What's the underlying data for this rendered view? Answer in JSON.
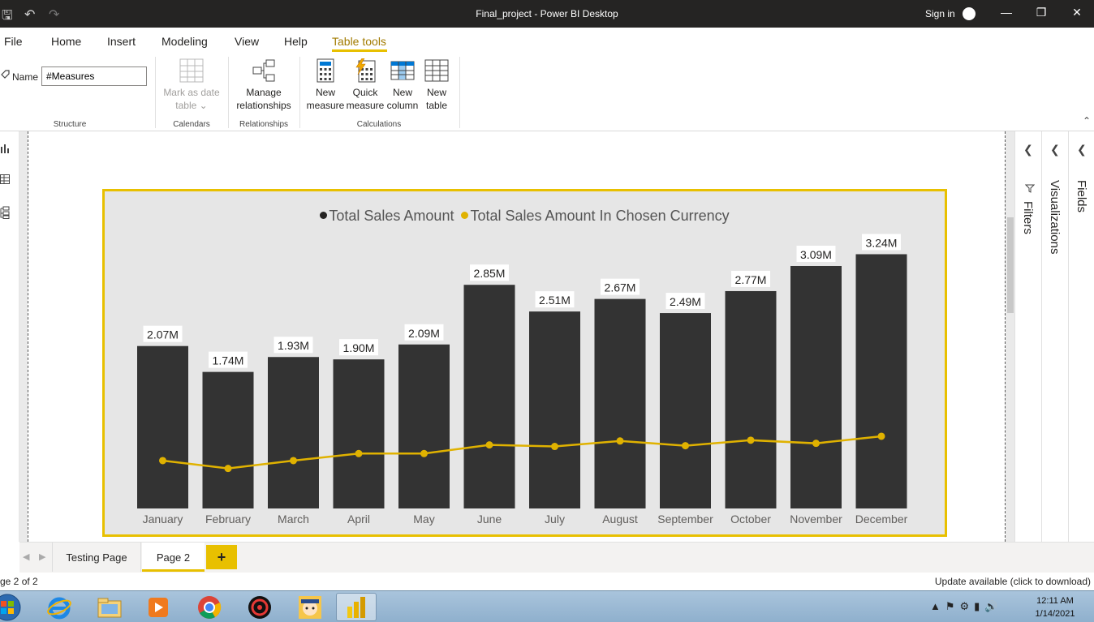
{
  "window": {
    "title": "Final_project - Power BI Desktop",
    "signin": "Sign in"
  },
  "menu": {
    "items": [
      "File",
      "Home",
      "Insert",
      "Modeling",
      "View",
      "Help",
      "Table tools"
    ],
    "active": "Table tools"
  },
  "ribbon": {
    "name_label": "Name",
    "name_value": "#Measures",
    "groups": {
      "structure": "Structure",
      "calendars": "Calendars",
      "relationships": "Relationships",
      "calculations": "Calculations"
    },
    "buttons": {
      "mark_date_1": "Mark as date",
      "mark_date_2": "table",
      "manage_rel_1": "Manage",
      "manage_rel_2": "relationships",
      "new_measure_1": "New",
      "new_measure_2": "measure",
      "quick_measure_1": "Quick",
      "quick_measure_2": "measure",
      "new_column_1": "New",
      "new_column_2": "column",
      "new_table_1": "New",
      "new_table_2": "table"
    }
  },
  "panes": {
    "filters": "Filters",
    "visualizations": "Visualizations",
    "fields": "Fields"
  },
  "tabs": {
    "testing": "Testing Page",
    "page2": "Page 2",
    "add": "+"
  },
  "status": {
    "page_info": "ge 2 of 2",
    "update": "Update available (click to download)"
  },
  "taskbar": {
    "time": "12:11 AM",
    "date": "1/14/2021"
  },
  "colors": {
    "bar": "#333333",
    "line": "#e0b200",
    "accent": "#e8c000"
  },
  "chart_data": {
    "type": "bar",
    "categories": [
      "January",
      "February",
      "March",
      "April",
      "May",
      "June",
      "July",
      "August",
      "September",
      "October",
      "November",
      "December"
    ],
    "series": [
      {
        "name": "Total Sales Amount",
        "type": "bar",
        "values": [
          2.07,
          1.74,
          1.93,
          1.9,
          2.09,
          2.85,
          2.51,
          2.67,
          2.49,
          2.77,
          3.09,
          3.24
        ],
        "labels": [
          "2.07M",
          "1.74M",
          "1.93M",
          "1.90M",
          "2.09M",
          "2.85M",
          "2.51M",
          "2.67M",
          "2.49M",
          "2.77M",
          "3.09M",
          "3.24M"
        ]
      },
      {
        "name": "Total Sales Amount In Chosen Currency",
        "type": "line",
        "values": [
          0.61,
          0.51,
          0.61,
          0.7,
          0.7,
          0.81,
          0.79,
          0.86,
          0.8,
          0.87,
          0.83,
          0.92
        ]
      }
    ],
    "ylim": [
      0,
      3.4
    ],
    "legend": "top-center",
    "grid": false
  }
}
